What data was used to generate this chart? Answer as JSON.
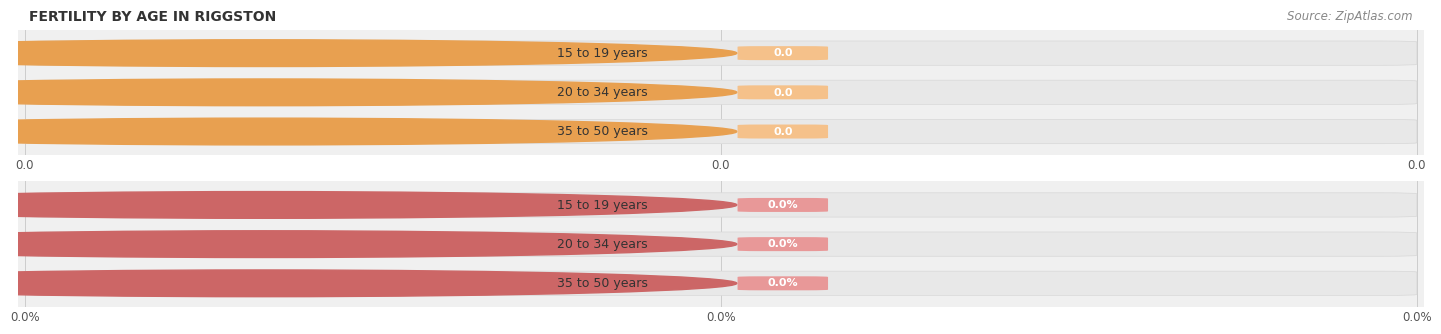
{
  "title": "FERTILITY BY AGE IN RIGGSTON",
  "source": "Source: ZipAtlas.com",
  "chart1_categories": [
    "15 to 19 years",
    "20 to 34 years",
    "35 to 50 years"
  ],
  "chart1_values": [
    0.0,
    0.0,
    0.0
  ],
  "chart1_bar_color": "#f5c18a",
  "chart1_circle_color": "#e8a050",
  "chart1_bar_bg": "#ebebeb",
  "chart2_categories": [
    "15 to 19 years",
    "20 to 34 years",
    "35 to 50 years"
  ],
  "chart2_values": [
    0.0,
    0.0,
    0.0
  ],
  "chart2_bar_color": "#e89898",
  "chart2_circle_color": "#cc6666",
  "chart2_bar_bg": "#ebebeb",
  "xtick_labels_top": [
    "0.0",
    "0.0",
    "0.0"
  ],
  "xtick_labels_bottom": [
    "0.0%",
    "0.0%",
    "0.0%"
  ],
  "title_fontsize": 10,
  "source_fontsize": 8.5,
  "label_fontsize": 9,
  "value_fontsize": 8,
  "tick_fontsize": 8.5,
  "fig_bg_color": "#ffffff",
  "grid_color": "#cccccc",
  "bg_color": "#f0f0f0"
}
